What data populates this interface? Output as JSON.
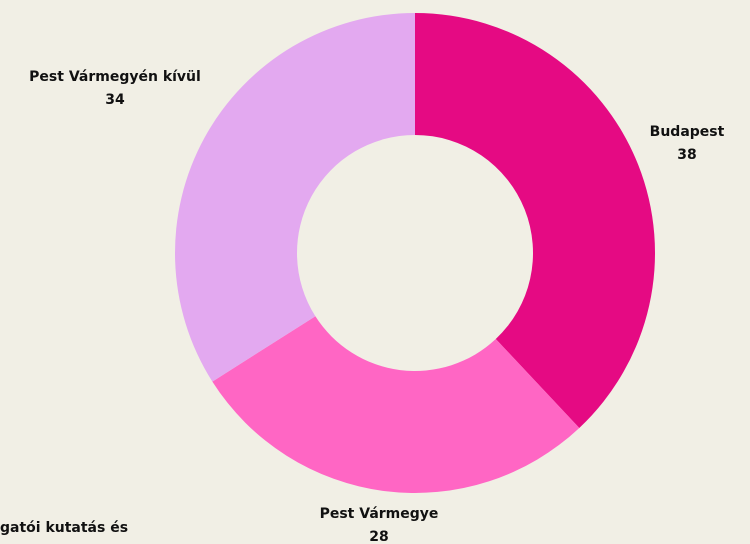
{
  "chart_data": {
    "type": "donut",
    "categories": [
      "Budapest",
      "Pest Vármegye",
      "Pest Vármegyén kívül"
    ],
    "values": [
      38,
      28,
      34
    ],
    "colors": [
      "#e50a83",
      "#ff66c4",
      "#e3a9f0"
    ]
  },
  "footnote": "gatói kutatás és"
}
